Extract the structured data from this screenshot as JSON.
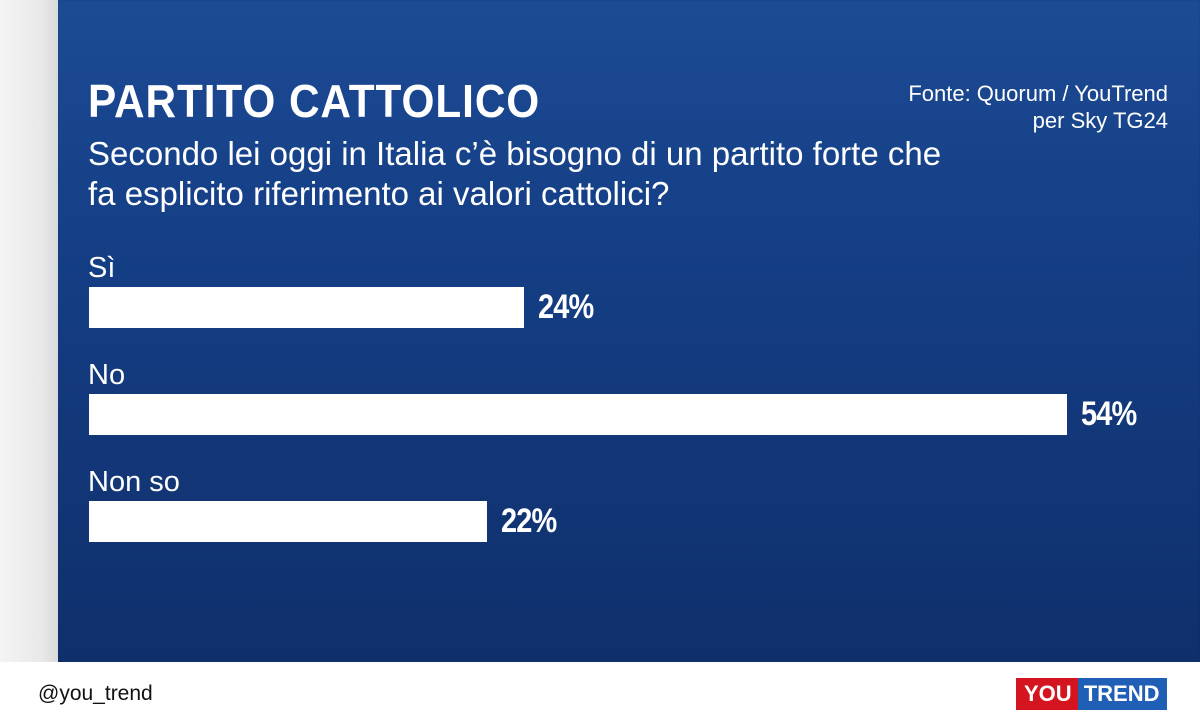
{
  "header": {
    "title": "PARTITO CATTOLICO",
    "question": "Secondo lei oggi in Italia c’è bisogno di un partito forte che fa esplicito riferimento ai valori cattolici?",
    "source_line1": "Fonte: Quorum / YouTrend",
    "source_line2": "per Sky TG24"
  },
  "chart_data": {
    "type": "bar",
    "orientation": "horizontal",
    "categories": [
      "Sì",
      "No",
      "Non so"
    ],
    "values": [
      24,
      54,
      22
    ],
    "value_labels": [
      "24%",
      "54%",
      "22%"
    ],
    "unit": "%",
    "xlim": [
      0,
      54
    ],
    "grid": false,
    "colors": {
      "bar": "#ffffff",
      "background": "#153f86"
    }
  },
  "footer": {
    "handle": "@you_trend",
    "logo_you": "YOU",
    "logo_trend": "TREND"
  }
}
